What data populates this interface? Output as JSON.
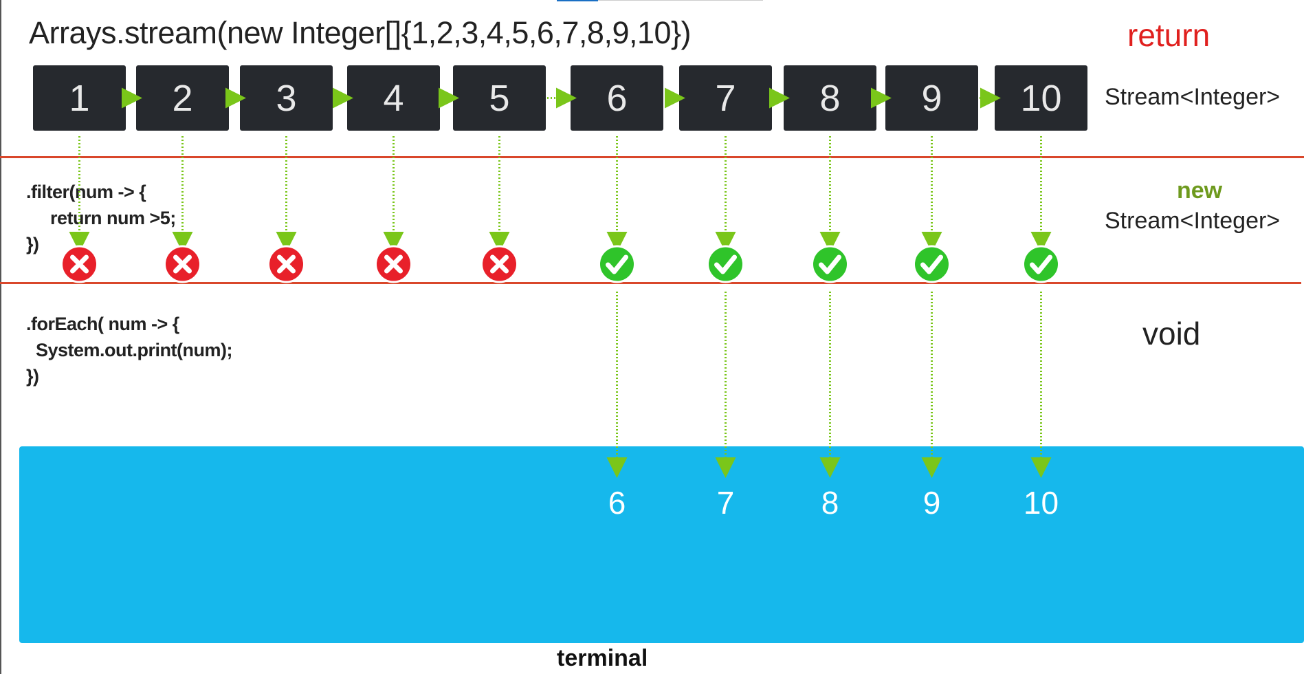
{
  "title": "Arrays.stream(new Integer[]{1,2,3,4,5,6,7,8,9,10})",
  "labels": {
    "return": "return",
    "stream_top": "Stream<Integer>",
    "new": "new",
    "stream_new": "Stream<Integer>",
    "void": "void",
    "terminal": "terminal"
  },
  "code": {
    "filter": ".filter(num -> {\n     return num >5;\n})",
    "foreach": ".forEach( num -> {\n  System.out.print(num);\n})"
  },
  "elements": [
    {
      "value": "1",
      "passed": false
    },
    {
      "value": "2",
      "passed": false
    },
    {
      "value": "3",
      "passed": false
    },
    {
      "value": "4",
      "passed": false
    },
    {
      "value": "5",
      "passed": false
    },
    {
      "value": "6",
      "passed": true
    },
    {
      "value": "7",
      "passed": true
    },
    {
      "value": "8",
      "passed": true
    },
    {
      "value": "9",
      "passed": true
    },
    {
      "value": "10",
      "passed": true
    }
  ],
  "output": [
    "6",
    "7",
    "8",
    "9",
    "10"
  ],
  "icons": {
    "rejected": "x-circle-icon",
    "accepted": "check-circle-icon"
  },
  "colors": {
    "box": "#26292e",
    "arrow": "#7ac61a",
    "divider": "#d9472b",
    "reject": "#e8202a",
    "accept": "#2fc42a",
    "terminal": "#16b8ec",
    "return": "#e0201e",
    "new": "#6e9a1e"
  }
}
